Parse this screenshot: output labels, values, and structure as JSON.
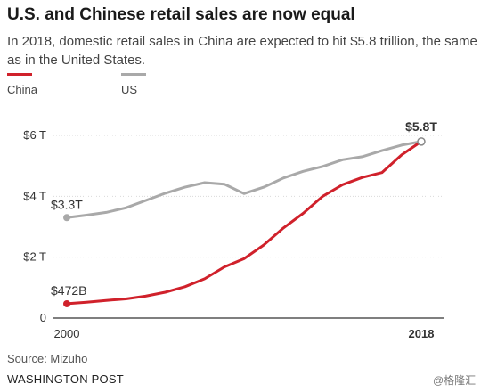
{
  "header": {
    "title": "U.S. and Chinese retail sales are now equal",
    "subtitle": "In 2018, domestic retail sales in China are expected to hit $5.8 trillion, the same as in the United States."
  },
  "footer": {
    "source": "Source: Mizuho",
    "credit": "WASHINGTON POST",
    "watermark": "@格隆汇"
  },
  "colors": {
    "china": "#d0212b",
    "us": "#a9a9a9",
    "grid": "#d9d9d9",
    "axis": "#333333"
  },
  "chart_data": {
    "type": "line",
    "title": "U.S. and Chinese retail sales are now equal",
    "subtitle": "In 2018, domestic retail sales in China are expected to hit $5.8 trillion, the same as in the United States.",
    "xlabel": "",
    "ylabel": "",
    "x": [
      2000,
      2001,
      2002,
      2003,
      2004,
      2005,
      2006,
      2007,
      2008,
      2009,
      2010,
      2011,
      2012,
      2013,
      2014,
      2015,
      2016,
      2017,
      2018
    ],
    "xlim": [
      2000,
      2018
    ],
    "ylim": [
      0,
      6
    ],
    "y_ticks": [
      {
        "value": 0,
        "label": "0"
      },
      {
        "value": 2,
        "label": "$2 T"
      },
      {
        "value": 4,
        "label": "$4 T"
      },
      {
        "value": 6,
        "label": "$6 T"
      }
    ],
    "x_ticks": [
      {
        "value": 2000,
        "label": "2000",
        "bold": false
      },
      {
        "value": 2018,
        "label": "2018",
        "bold": true
      }
    ],
    "grid": true,
    "legend": "top-left",
    "series": [
      {
        "name": "China",
        "color": "#d0212b",
        "values": [
          0.47,
          0.52,
          0.58,
          0.63,
          0.72,
          0.85,
          1.03,
          1.29,
          1.68,
          1.95,
          2.4,
          2.96,
          3.44,
          4.0,
          4.38,
          4.62,
          4.78,
          5.36,
          5.8
        ]
      },
      {
        "name": "US",
        "color": "#a9a9a9",
        "values": [
          3.3,
          3.38,
          3.47,
          3.62,
          3.86,
          4.1,
          4.3,
          4.45,
          4.4,
          4.09,
          4.3,
          4.6,
          4.82,
          4.98,
          5.2,
          5.3,
          5.5,
          5.68,
          5.8
        ]
      }
    ],
    "annotations": [
      {
        "text": "$472B",
        "series": "China",
        "x": 2000,
        "y": 0.47,
        "bold": false
      },
      {
        "text": "$3.3T",
        "series": "US",
        "x": 2000,
        "y": 3.3,
        "bold": false
      },
      {
        "text": "$5.8T",
        "series": "US",
        "x": 2018,
        "y": 5.8,
        "bold": true
      }
    ]
  }
}
